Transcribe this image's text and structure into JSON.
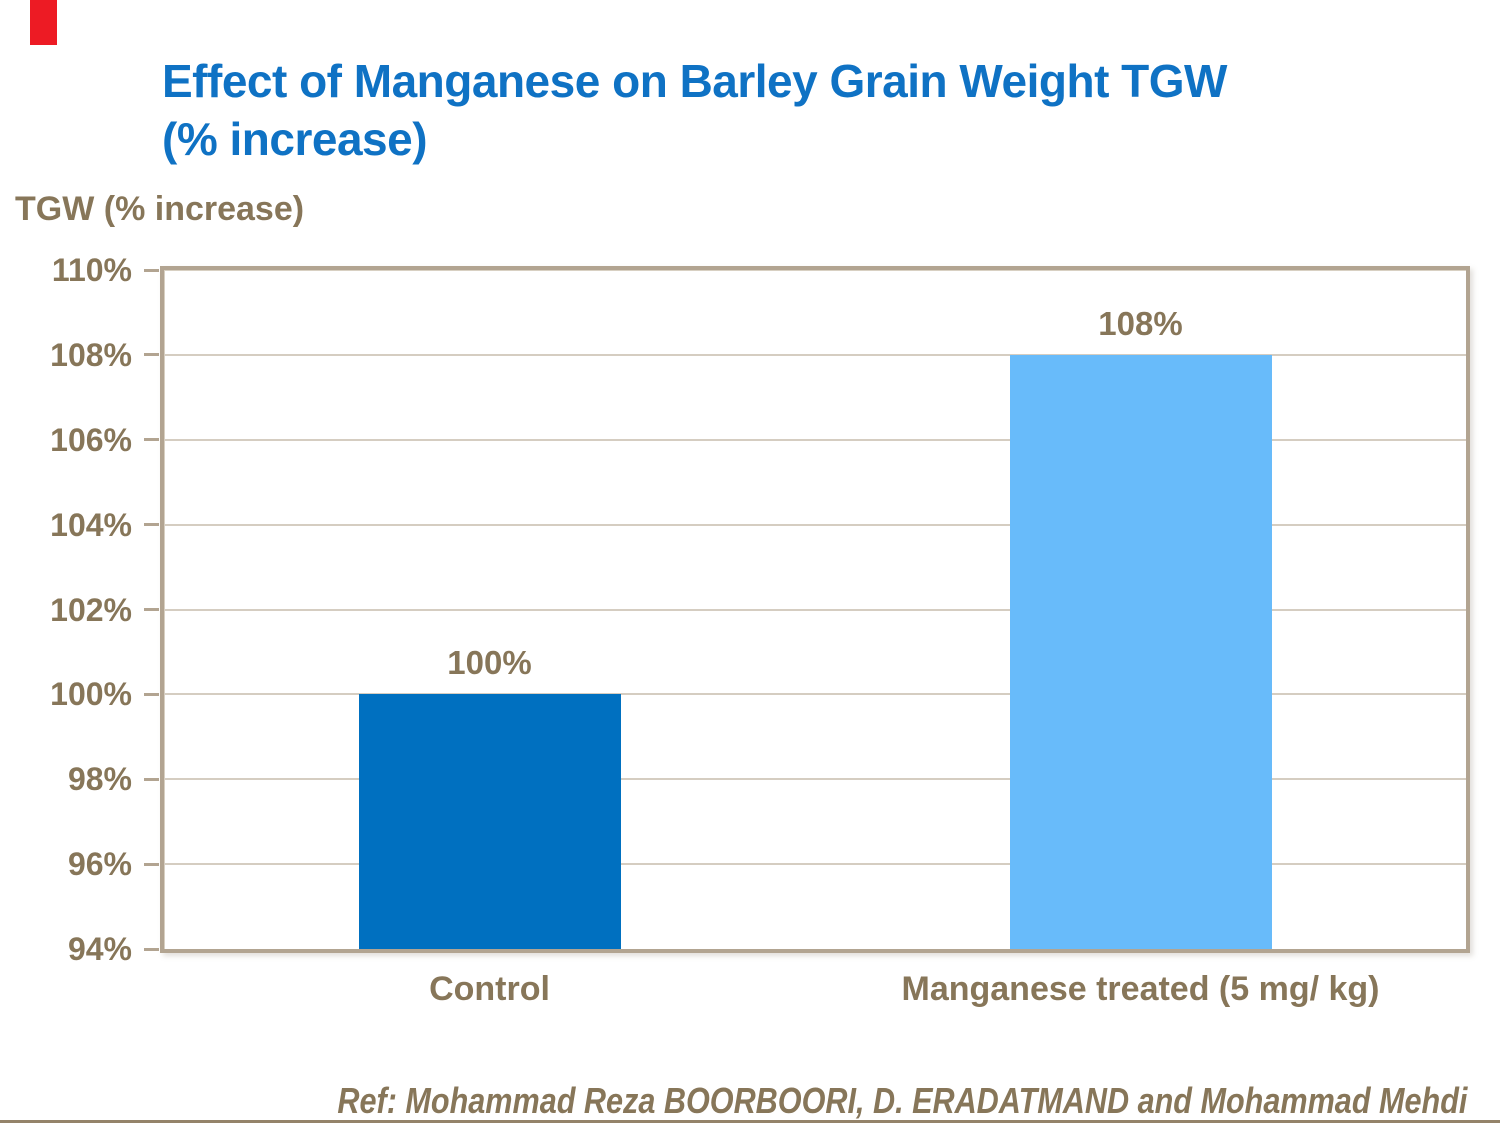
{
  "slide": {
    "marker_color": "#ED1B24",
    "background": "#FFFFFF"
  },
  "title": {
    "lines": [
      "Effect of Manganese on Barley Grain Weight TGW",
      "(% increase)"
    ],
    "color": "#0F72C4"
  },
  "y_axis_title": "TGW (% increase)",
  "footer": {
    "reference": "Ref: Mohammad Reza BOORBOORI, D. ERADATMAND and Mohammad Mehdi",
    "rule_color": "#94836A"
  },
  "palette": {
    "text_brown": "#877659",
    "plot_border": "#B2A491",
    "gridline": "#D5CDC1"
  },
  "chart_data": {
    "type": "bar",
    "title": "Effect of Manganese on Barley Grain Weight TGW (% increase)",
    "axis_title": "TGW (% increase)",
    "categories": [
      "Control",
      "Manganese treated (5 mg/ kg)"
    ],
    "values": [
      100,
      108
    ],
    "data_labels": [
      "100%",
      "108%"
    ],
    "bar_colors": [
      "#0070C0",
      "#68BBFA"
    ],
    "xlabel": "",
    "ylabel": "TGW (% increase)",
    "ylim": [
      94,
      110
    ],
    "ytick_interval": 2,
    "ytick_labels": [
      "110%",
      "108%",
      "106%",
      "104%",
      "102%",
      "100%",
      "98%",
      "96%",
      "94%"
    ],
    "grid": true,
    "legend": false
  }
}
